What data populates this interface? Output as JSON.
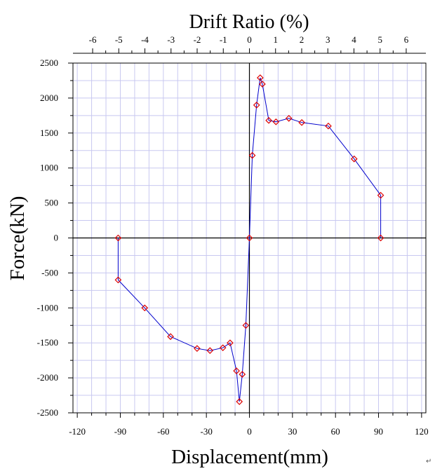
{
  "chart_data": {
    "type": "line",
    "xlabel": "Displacement(mm)",
    "ylabel": "Force(kN)",
    "x2label": "Drift Ratio (%)",
    "xlim": [
      -123,
      123
    ],
    "ylim": [
      -2500,
      2500
    ],
    "x_ticks": [
      -120,
      -90,
      -60,
      -30,
      0,
      30,
      60,
      90,
      120
    ],
    "x_minor_step": 10,
    "y_ticks": [
      -2500,
      -2000,
      -1500,
      -1000,
      -500,
      0,
      500,
      1000,
      1500,
      2000,
      2500
    ],
    "y_minor_step": 250,
    "x2_ticks": [
      -6,
      -5,
      -4,
      -3,
      -2,
      -1,
      0,
      1,
      2,
      3,
      4,
      5,
      6
    ],
    "x2_per_x_unit": 0.0549,
    "grid": true,
    "colors": {
      "line": "#0000cc",
      "marker": "#dd0000",
      "grid": "#c8c8f0",
      "zero_axes": "#000000"
    },
    "series": [
      {
        "marker": "diamond",
        "points": [
          [
            -91.5,
            0
          ],
          [
            -91.5,
            -600
          ],
          [
            -73,
            -1000
          ],
          [
            -55,
            -1410
          ],
          [
            -36.5,
            -1580
          ],
          [
            -27.5,
            -1610
          ],
          [
            -18.5,
            -1570
          ],
          [
            -13.5,
            -1500
          ],
          [
            -9,
            -1900
          ],
          [
            -7,
            -2340
          ],
          [
            -5,
            -1950
          ],
          [
            -2.5,
            -1250
          ],
          [
            0,
            0
          ],
          [
            2,
            1180
          ],
          [
            5,
            1900
          ],
          [
            7.5,
            2290
          ],
          [
            9,
            2200
          ],
          [
            13.5,
            1680
          ],
          [
            18.5,
            1660
          ],
          [
            27.5,
            1710
          ],
          [
            36.5,
            1650
          ],
          [
            55,
            1600
          ],
          [
            73,
            1130
          ],
          [
            91.5,
            610
          ],
          [
            91.5,
            0
          ]
        ]
      }
    ]
  },
  "footer": {
    "corner_mark": "↵"
  }
}
